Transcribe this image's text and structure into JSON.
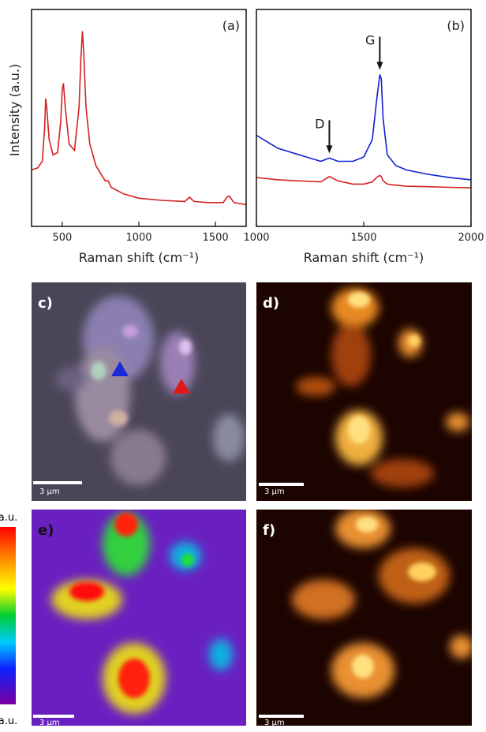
{
  "chart_data": [
    {
      "type": "line",
      "panel_label": "(a)",
      "xlabel": "Raman shift (cm⁻¹)",
      "ylabel": "Intensity (a.u.)",
      "x": [
        300,
        340,
        370,
        385,
        392,
        400,
        415,
        440,
        470,
        490,
        500,
        508,
        520,
        545,
        580,
        610,
        622,
        632,
        640,
        655,
        680,
        720,
        780,
        800,
        820,
        900,
        1000,
        1150,
        1300,
        1330,
        1360,
        1450,
        1550,
        1575,
        1590,
        1620,
        1700
      ],
      "values": [
        26,
        27,
        30,
        45,
        59,
        54,
        40,
        33,
        34,
        48,
        63,
        66,
        55,
        38,
        35,
        55,
        78,
        90,
        80,
        55,
        38,
        28,
        21,
        21,
        18,
        15,
        13,
        12,
        11.5,
        13.5,
        11.5,
        11,
        11,
        13.5,
        14,
        11,
        10
      ],
      "color": "#d42020",
      "xlim": [
        300,
        1700
      ],
      "xticks": [
        500,
        1000,
        1500
      ],
      "ylim": [
        0,
        100
      ]
    },
    {
      "type": "line",
      "panel_label": "(b)",
      "xlabel": "Raman shift (cm⁻¹)",
      "x": [
        1000,
        1050,
        1100,
        1200,
        1300,
        1340,
        1380,
        1450,
        1500,
        1540,
        1560,
        1575,
        1582,
        1590,
        1610,
        1650,
        1700,
        1800,
        1900,
        2000
      ],
      "series": [
        {
          "color": "#1020d0",
          "values": [
            42,
            39,
            36,
            33,
            30,
            31.5,
            30,
            30,
            32,
            40,
            58,
            70,
            68,
            50,
            33,
            28,
            26,
            24,
            22.5,
            21.5
          ]
        },
        {
          "color": "#d42020",
          "values": [
            22.5,
            22,
            21.5,
            21,
            20.5,
            23,
            21,
            19.5,
            19.5,
            20.5,
            22.5,
            23.5,
            23,
            21,
            19.5,
            19,
            18.5,
            18.3,
            18,
            17.8
          ]
        }
      ],
      "annotations": [
        {
          "text": "D",
          "x": 1340
        },
        {
          "text": "G",
          "x": 1575
        }
      ],
      "xlim": [
        1000,
        2000
      ],
      "xticks": [
        1000,
        1500,
        2000
      ],
      "ylim": [
        0,
        100
      ]
    }
  ],
  "image_panels": [
    {
      "label": "c)",
      "scale_bar": "3 µm"
    },
    {
      "label": "d)",
      "scale_bar": "3 µm"
    },
    {
      "label": "e)",
      "scale_bar": "3 µm"
    },
    {
      "label": "f)",
      "scale_bar": "3 µm"
    }
  ],
  "colorbar": {
    "top_label": "a.u.",
    "bottom_label": "a.u."
  }
}
